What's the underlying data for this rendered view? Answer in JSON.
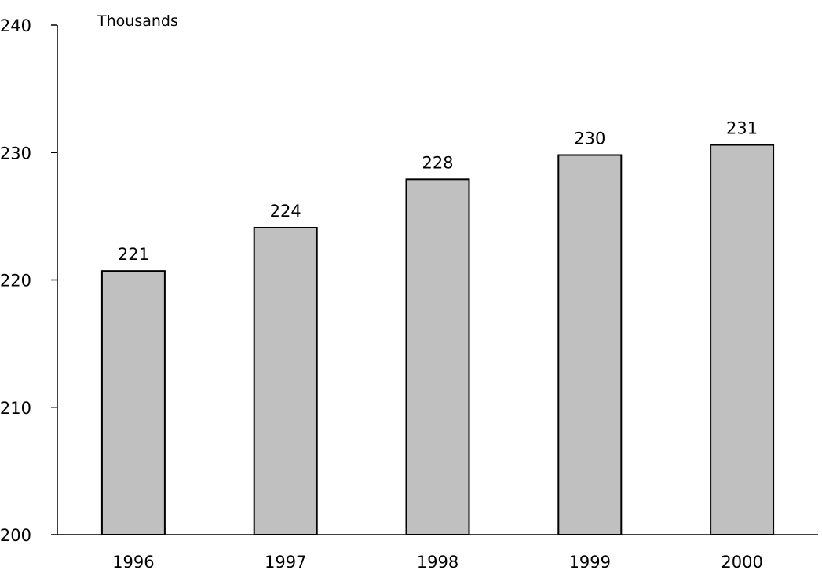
{
  "chart_data": {
    "type": "bar",
    "title": "",
    "unit_label": "Thousands",
    "xlabel": "",
    "ylabel": "",
    "categories": [
      "1996",
      "1997",
      "1998",
      "1999",
      "2000"
    ],
    "values": [
      220.7,
      224.1,
      227.9,
      229.8,
      230.6
    ],
    "data_labels": [
      "221",
      "224",
      "228",
      "230",
      "231"
    ],
    "ylim": [
      200,
      240
    ],
    "yticks": [
      200,
      210,
      220,
      230,
      240
    ],
    "ytick_labels": [
      "200",
      "210",
      "220",
      "230",
      "240"
    ],
    "grid": false,
    "legend": "none",
    "colors": {
      "bar_fill": "#c0c0c0",
      "bar_stroke": "#000000",
      "axis": "#000000"
    }
  }
}
